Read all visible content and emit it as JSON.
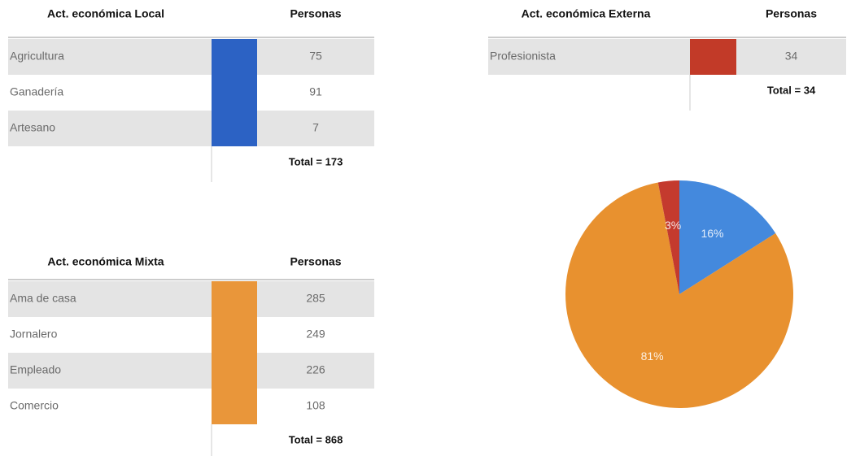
{
  "tables": [
    {
      "title": "Act. económica Local",
      "header": "Personas",
      "color": "#2c62c4",
      "rows": [
        [
          "Agricultura",
          75
        ],
        [
          "Ganadería",
          91
        ],
        [
          "Artesano",
          7
        ]
      ],
      "total": "Total = 173"
    },
    {
      "title": "Act. económica Externa",
      "header": "Personas",
      "color": "#c23a28",
      "rows": [
        [
          "Profesionista",
          34
        ]
      ],
      "total": "Total = 34"
    },
    {
      "title": "Act. económica Mixta",
      "header": "Personas",
      "color": "#e9963a",
      "rows": [
        [
          "Ama de casa",
          285
        ],
        [
          "Jornalero",
          249
        ],
        [
          "Empleado",
          226
        ],
        [
          "Comercio",
          108
        ]
      ],
      "total": "Total = 868"
    }
  ],
  "chart_data": {
    "type": "pie",
    "values": [
      16,
      81,
      3
    ],
    "value_labels": [
      "16%",
      "81%",
      "3%"
    ],
    "colors": [
      "#4489dd",
      "#e8912f",
      "#c43a2e"
    ]
  }
}
